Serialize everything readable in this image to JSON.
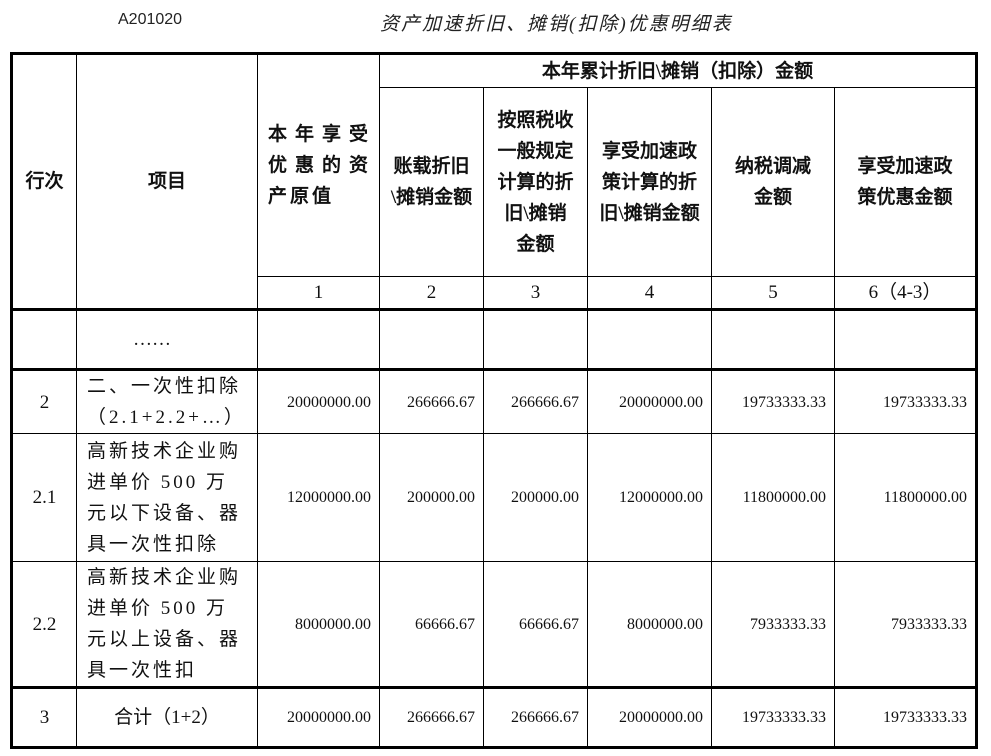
{
  "form_number": "A201020",
  "title": "资产加速折旧、摊销(扣除)优惠明细表",
  "header": {
    "row_no": "行次",
    "item": "项目",
    "col1": "本年享受优惠的资产原值",
    "group": "本年累计折旧\\摊销（扣除）金额",
    "col2": "账载折旧\\摊销金额",
    "col3": "按照税收一般规定计算的折旧\\摊销金额",
    "col4": "享受加速政策计算的折旧\\摊销金额",
    "col5": "纳税调减金额",
    "col6": "享受加速政策优惠金额",
    "numbers": [
      "1",
      "2",
      "3",
      "4",
      "5",
      "6（4-3）"
    ]
  },
  "rows": [
    {
      "no": "",
      "item": "……",
      "values": [
        "",
        "",
        "",
        "",
        "",
        ""
      ]
    },
    {
      "no": "2",
      "item": "二、一次性扣除（2.1+2.2+…）",
      "values": [
        "20000000.00",
        "266666.67",
        "266666.67",
        "20000000.00",
        "19733333.33",
        "19733333.33"
      ]
    },
    {
      "no": "2.1",
      "item": "高新技术企业购进单价 500 万元以下设备、器具一次性扣除",
      "values": [
        "12000000.00",
        "200000.00",
        "200000.00",
        "12000000.00",
        "11800000.00",
        "11800000.00"
      ]
    },
    {
      "no": "2.2",
      "item": "高新技术企业购进单价 500 万元以上设备、器具一次性扣",
      "values": [
        "8000000.00",
        "66666.67",
        "66666.67",
        "8000000.00",
        "7933333.33",
        "7933333.33"
      ]
    },
    {
      "no": "3",
      "item": "合计（1+2）",
      "values": [
        "20000000.00",
        "266666.67",
        "266666.67",
        "20000000.00",
        "19733333.33",
        "19733333.33"
      ]
    }
  ]
}
